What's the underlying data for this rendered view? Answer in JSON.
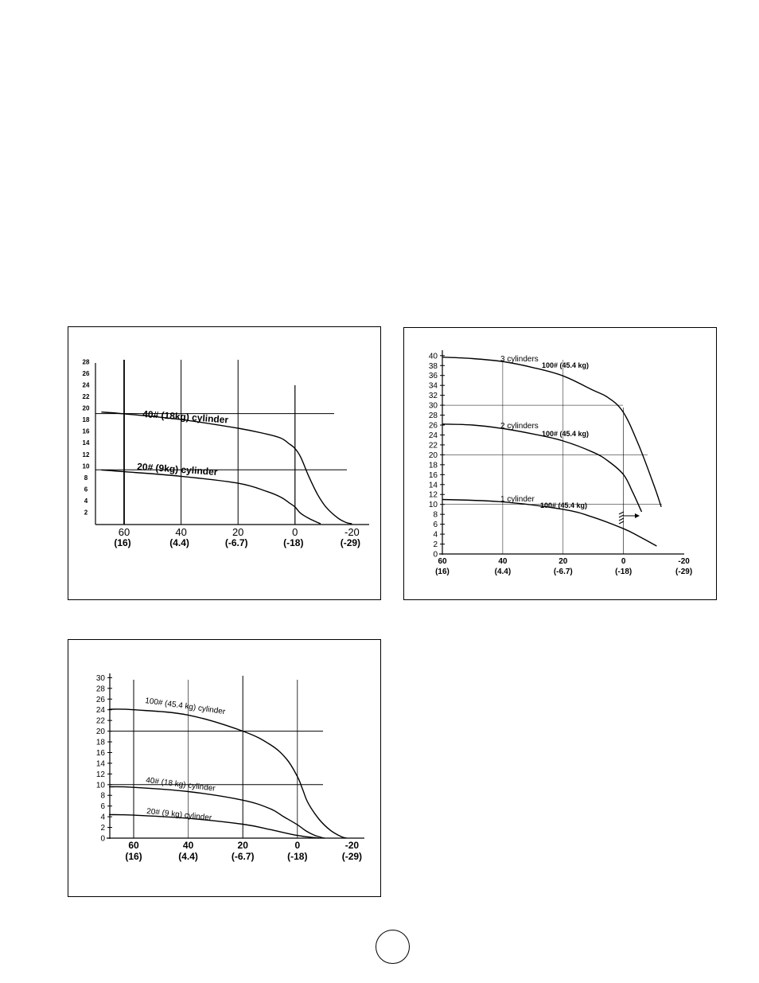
{
  "chart_data": [
    {
      "type": "line",
      "y_ticks": [
        2,
        4,
        6,
        8,
        10,
        12,
        14,
        16,
        18,
        20,
        22,
        24,
        26,
        28
      ],
      "y_tick_labels": [
        "2",
        "4",
        "6",
        "8",
        "10",
        "12",
        "14",
        "16",
        "18",
        "20",
        "22",
        "24",
        "26",
        "28"
      ],
      "x_ticks": [
        60,
        40,
        20,
        0,
        -20
      ],
      "x_tick_labels": [
        "60",
        "40",
        "20",
        "0",
        "-20"
      ],
      "x_sub_labels": [
        "(16)",
        "(4.4)",
        "(-6.7)",
        "(-18)",
        "(-29)"
      ],
      "ylim": [
        0,
        29
      ],
      "xlim": [
        68,
        -28
      ],
      "series": [
        {
          "name": "40# (18kg) cylinder",
          "x": [
            68,
            60,
            40,
            20,
            10,
            5,
            2,
            0,
            -2,
            -5,
            -8,
            -11,
            -15,
            -18,
            -20
          ],
          "values": [
            19.3,
            19,
            18,
            16.5,
            15.5,
            14.8,
            13.8,
            13,
            11.5,
            8,
            5,
            2.8,
            1,
            0.2,
            0
          ]
        },
        {
          "name": "20# (9kg) cylinder",
          "x": [
            68,
            60,
            40,
            20,
            10,
            5,
            2,
            0,
            -2,
            -5,
            -8,
            -9
          ],
          "values": [
            9.3,
            9,
            8.2,
            7,
            5.6,
            4.6,
            3.6,
            2.9,
            1.8,
            0.9,
            0.2,
            0
          ]
        }
      ]
    },
    {
      "type": "line",
      "y_ticks": [
        0,
        2,
        4,
        6,
        8,
        10,
        12,
        14,
        16,
        18,
        20,
        22,
        24,
        26,
        28,
        30,
        32,
        34,
        36,
        38,
        40
      ],
      "y_tick_labels": [
        "0",
        "2",
        "4",
        "6",
        "8",
        "10",
        "12",
        "14",
        "16",
        "18",
        "20",
        "22",
        "24",
        "26",
        "28",
        "30",
        "32",
        "34",
        "36",
        "38",
        "40"
      ],
      "x_ticks": [
        60,
        40,
        20,
        0,
        -20
      ],
      "x_tick_labels": [
        "60",
        "40",
        "20",
        "0",
        "-20"
      ],
      "x_sub_labels": [
        "(16)",
        "(4.4)",
        "(-6.7)",
        "(-18)",
        "(-29)"
      ],
      "ylim": [
        0,
        41
      ],
      "xlim": [
        61,
        -22
      ],
      "series": [
        {
          "name": "3 cylinders",
          "x": [
            60,
            50,
            40,
            30,
            20,
            10,
            5,
            0,
            -5,
            -10,
            -12.5
          ],
          "values": [
            39.7,
            39.4,
            38.8,
            37.6,
            35.9,
            33,
            31.5,
            28.5,
            22,
            14,
            9.5
          ]
        },
        {
          "name": "2 cylinders",
          "x": [
            60,
            50,
            40,
            30,
            20,
            10,
            5,
            0,
            -3,
            -6
          ],
          "values": [
            26.2,
            26,
            25.3,
            24.2,
            22.8,
            20.5,
            18.7,
            16,
            12.5,
            8.5
          ]
        },
        {
          "name": "1 cylinder",
          "x": [
            60,
            40,
            20,
            10,
            0,
            -5,
            -11
          ],
          "values": [
            11,
            10.5,
            9,
            7.4,
            5.1,
            3.6,
            1.6
          ]
        }
      ],
      "annotations": [
        {
          "text": "100# (45.4 kg)"
        },
        {
          "text": "100# (45.4 kg)"
        },
        {
          "text": "100# (45.4 kg)"
        }
      ]
    },
    {
      "type": "line",
      "y_ticks": [
        0,
        2,
        4,
        6,
        8,
        10,
        12,
        14,
        16,
        18,
        20,
        22,
        24,
        26,
        28,
        30
      ],
      "y_tick_labels": [
        "0",
        "2",
        "4",
        "6",
        "8",
        "10",
        "12",
        "14",
        "16",
        "18",
        "20",
        "22",
        "24",
        "26",
        "28",
        "30"
      ],
      "x_ticks": [
        60,
        40,
        20,
        0,
        -20
      ],
      "x_tick_labels": [
        "60",
        "40",
        "20",
        "0",
        "-20"
      ],
      "x_sub_labels": [
        "(16)",
        "(4.4)",
        "(-6.7)",
        "(-18)",
        "(-29)"
      ],
      "ylim": [
        0,
        30
      ],
      "xlim": [
        69,
        -25
      ],
      "series": [
        {
          "name": "100# (45.4 kg) cylinder",
          "x": [
            69,
            60,
            40,
            20,
            10,
            4,
            0,
            -2,
            -4,
            -8,
            -12,
            -16,
            -18
          ],
          "values": [
            24.1,
            24,
            23,
            20,
            17.5,
            14.8,
            11.5,
            9,
            6.5,
            3.5,
            1.5,
            0.3,
            0
          ]
        },
        {
          "name": "40# (18 kg) cylinder",
          "x": [
            69,
            60,
            40,
            20,
            10,
            5,
            0,
            -3,
            -6,
            -9,
            -10
          ],
          "values": [
            9.6,
            9.5,
            8.7,
            7.1,
            5.5,
            4,
            2.5,
            1.4,
            0.6,
            0.1,
            0
          ]
        },
        {
          "name": "20# (9 kg) cylinder",
          "x": [
            69,
            60,
            40,
            20,
            10,
            0,
            -8
          ],
          "values": [
            4.4,
            4.3,
            3.7,
            2.6,
            1.6,
            0.5,
            0
          ]
        }
      ]
    }
  ],
  "colors": {
    "ink": "#000000",
    "background": "#ffffff"
  }
}
